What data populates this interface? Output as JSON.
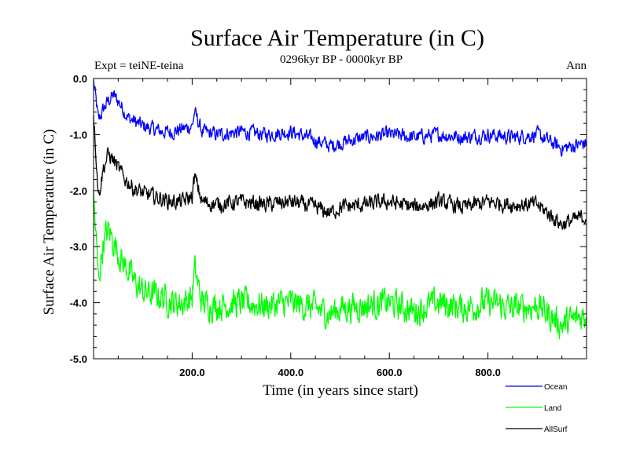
{
  "chart_data": {
    "type": "line",
    "title": "Surface Air Temperature (in C)",
    "subtitle": "0296kyr BP - 0000kyr BP",
    "left_annotation": "Expt = teiNE-teina",
    "right_annotation": "Ann",
    "xlabel": "Time (in years since start)",
    "ylabel": "Surface Air Temperature (in C)",
    "xlim": [
      0,
      1000
    ],
    "ylim": [
      -5.0,
      0.0
    ],
    "x_ticks": [
      200,
      400,
      600,
      800
    ],
    "x_tick_labels": [
      "200.0",
      "400.0",
      "600.0",
      "800.0"
    ],
    "y_ticks": [
      0.0,
      -1.0,
      -2.0,
      -3.0,
      -4.0,
      -5.0
    ],
    "y_tick_labels": [
      "0.0",
      "-1.0",
      "-2.0",
      "-3.0",
      "-4.0",
      "-5.0"
    ],
    "grid": false,
    "legend_position": "bottom-right, below plot",
    "series": [
      {
        "name": "Ocean",
        "color": "#0000ff",
        "x": [
          0,
          10,
          20,
          30,
          40,
          50,
          60,
          70,
          80,
          90,
          100,
          120,
          140,
          160,
          180,
          200,
          205,
          220,
          250,
          300,
          350,
          400,
          450,
          480,
          500,
          550,
          600,
          650,
          700,
          750,
          800,
          850,
          900,
          950,
          1000
        ],
        "values": [
          -0.05,
          -0.75,
          -0.55,
          -0.4,
          -0.3,
          -0.4,
          -0.55,
          -0.7,
          -0.75,
          -0.8,
          -0.85,
          -0.9,
          -0.95,
          -0.95,
          -0.9,
          -0.85,
          -0.6,
          -0.95,
          -1.0,
          -0.95,
          -1.0,
          -0.95,
          -1.1,
          -1.2,
          -1.15,
          -1.05,
          -1.0,
          -1.05,
          -1.0,
          -1.05,
          -1.0,
          -1.05,
          -1.0,
          -1.25,
          -1.15
        ]
      },
      {
        "name": "Land",
        "color": "#00ff00",
        "x": [
          0,
          10,
          20,
          30,
          40,
          50,
          60,
          70,
          80,
          90,
          100,
          120,
          140,
          160,
          180,
          200,
          205,
          220,
          250,
          300,
          350,
          400,
          450,
          480,
          500,
          550,
          600,
          650,
          700,
          750,
          800,
          850,
          900,
          950,
          1000
        ],
        "values": [
          -2.1,
          -3.6,
          -2.9,
          -2.7,
          -2.9,
          -3.1,
          -3.3,
          -3.4,
          -3.6,
          -3.7,
          -3.8,
          -3.85,
          -3.9,
          -4.0,
          -4.0,
          -3.9,
          -3.4,
          -4.0,
          -4.05,
          -4.0,
          -4.05,
          -4.0,
          -4.1,
          -4.2,
          -4.1,
          -4.05,
          -4.0,
          -4.15,
          -4.0,
          -4.1,
          -4.0,
          -4.1,
          -4.05,
          -4.4,
          -4.2
        ]
      },
      {
        "name": "AllSurf",
        "color": "#000000",
        "x": [
          0,
          10,
          20,
          30,
          40,
          50,
          60,
          70,
          80,
          90,
          100,
          120,
          140,
          160,
          180,
          200,
          205,
          220,
          250,
          300,
          350,
          400,
          450,
          480,
          500,
          550,
          600,
          650,
          700,
          750,
          800,
          850,
          900,
          950,
          1000
        ],
        "values": [
          -0.6,
          -2.1,
          -1.6,
          -1.35,
          -1.45,
          -1.6,
          -1.75,
          -1.85,
          -1.95,
          -2.0,
          -2.05,
          -2.1,
          -2.15,
          -2.2,
          -2.2,
          -2.1,
          -1.75,
          -2.2,
          -2.25,
          -2.2,
          -2.25,
          -2.2,
          -2.3,
          -2.4,
          -2.3,
          -2.25,
          -2.2,
          -2.3,
          -2.2,
          -2.3,
          -2.2,
          -2.25,
          -2.25,
          -2.6,
          -2.45
        ]
      }
    ]
  }
}
